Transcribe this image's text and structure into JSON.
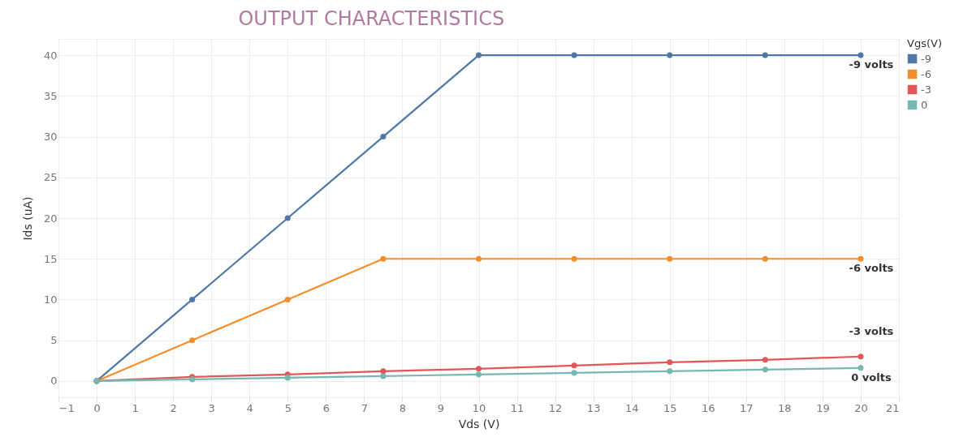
{
  "chart_data": {
    "type": "line",
    "title": "OUTPUT CHARACTERISTICS",
    "xlabel": "Vds (V)",
    "ylabel": "Ids (uA)",
    "legend_title": "Vgs(V)",
    "x": [
      0,
      2.5,
      5,
      7.5,
      10,
      12.5,
      15,
      17.5,
      20
    ],
    "series": [
      {
        "name": "-9",
        "color": "#4e79a7",
        "values": [
          0,
          10,
          20,
          30,
          40,
          40,
          40,
          40,
          40
        ]
      },
      {
        "name": "-6",
        "color": "#f28e2b",
        "values": [
          0,
          5,
          10,
          15,
          15,
          15,
          15,
          15,
          15
        ]
      },
      {
        "name": "-3",
        "color": "#e15759",
        "values": [
          0,
          0.5,
          0.8,
          1.2,
          1.5,
          1.9,
          2.3,
          2.6,
          3.0
        ]
      },
      {
        "name": "0",
        "color": "#76b7b2",
        "values": [
          0,
          0.2,
          0.4,
          0.6,
          0.8,
          1.0,
          1.2,
          1.4,
          1.6
        ]
      }
    ],
    "annotations": [
      "-9 volts",
      "-6 volts",
      "-3 volts",
      "0 volts"
    ],
    "xlim": [
      -1,
      21
    ],
    "xticks": [
      -1,
      0,
      1,
      2,
      3,
      4,
      5,
      6,
      7,
      8,
      9,
      10,
      11,
      12,
      13,
      14,
      15,
      16,
      17,
      18,
      19,
      20,
      21
    ],
    "ylim": [
      -2,
      42
    ],
    "yticks": [
      0,
      5,
      10,
      15,
      20,
      25,
      30,
      35,
      40
    ],
    "grid": true,
    "legend": "top right",
    "marker": "circle",
    "line_style": "solid"
  }
}
